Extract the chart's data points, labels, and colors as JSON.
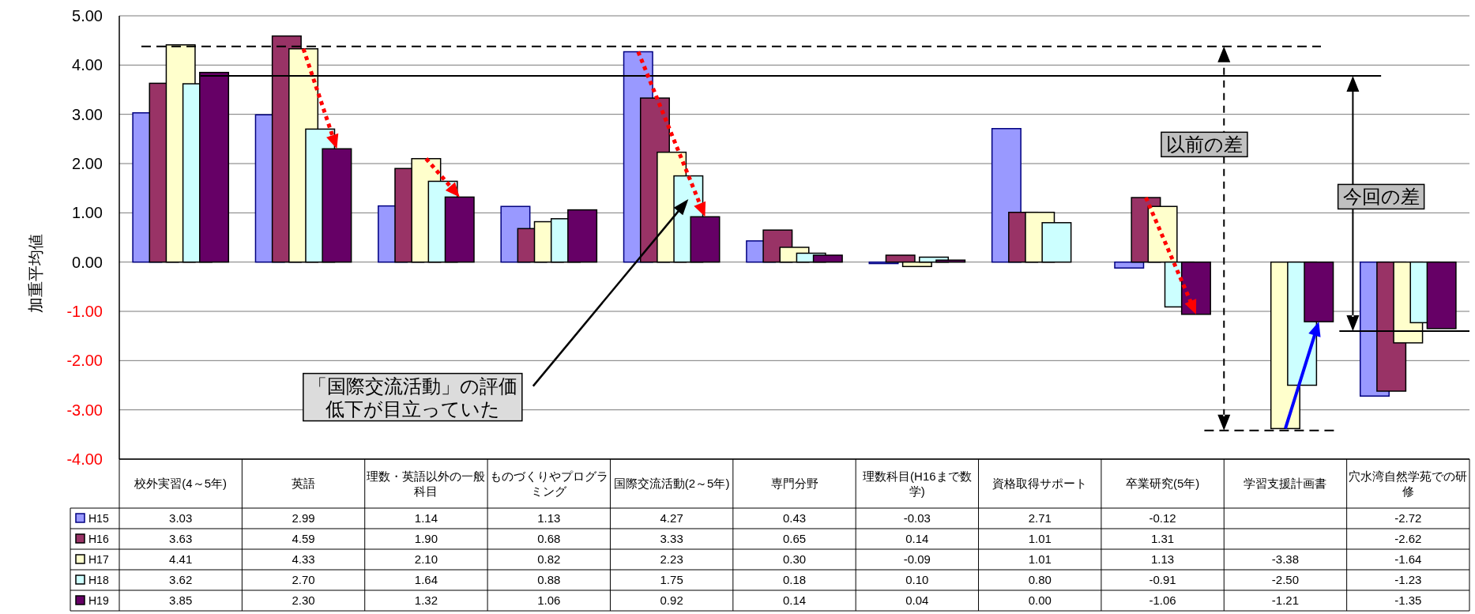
{
  "chart_data": {
    "type": "bar",
    "ylabel": "加重平均値",
    "categories": [
      "校外実習(4～5年)",
      "英語",
      "理数・英語以外の一般科目",
      "ものづくりやプログラミング",
      "国際交流活動(2～5年)",
      "専門分野",
      "理数科目(H16まで数学)",
      "資格取得サポート",
      "卒業研究(5年)",
      "学習支援計画書",
      "穴水湾自然学苑での研修"
    ],
    "series": [
      {
        "name": "H15",
        "color": "#9999ff",
        "values": [
          3.03,
          2.99,
          1.14,
          1.13,
          4.27,
          0.43,
          -0.03,
          2.71,
          -0.12,
          null,
          -2.72
        ],
        "value_labels": [
          "3.03",
          "2.99",
          "1.14",
          "1.13",
          "4.27",
          "0.43",
          "-0.03",
          "2.71",
          "-0.12",
          null,
          "-2.72"
        ]
      },
      {
        "name": "H16",
        "color": "#993366",
        "values": [
          3.63,
          4.59,
          1.9,
          0.68,
          3.33,
          0.65,
          0.14,
          1.01,
          1.31,
          null,
          -2.62
        ],
        "value_labels": [
          "3.63",
          "4.59",
          "1.90",
          "0.68",
          "3.33",
          "0.65",
          "0.14",
          "1.01",
          "1.31",
          null,
          "-2.62"
        ]
      },
      {
        "name": "H17",
        "color": "#ffffcc",
        "values": [
          4.41,
          4.33,
          2.1,
          0.82,
          2.23,
          0.3,
          -0.09,
          1.01,
          1.13,
          -3.38,
          -1.64
        ],
        "value_labels": [
          "4.41",
          "4.33",
          "2.10",
          "0.82",
          "2.23",
          "0.30",
          "-0.09",
          "1.01",
          "1.13",
          "-3.38",
          "-1.64"
        ]
      },
      {
        "name": "H18",
        "color": "#ccffff",
        "values": [
          3.62,
          2.7,
          1.64,
          0.88,
          1.75,
          0.18,
          0.1,
          0.8,
          -0.91,
          -2.5,
          -1.23
        ],
        "value_labels": [
          "3.62",
          "2.70",
          "1.64",
          "0.88",
          "1.75",
          "0.18",
          "0.10",
          "0.80",
          "-0.91",
          "-2.50",
          "-1.23"
        ]
      },
      {
        "name": "H19",
        "color": "#660066",
        "values": [
          3.85,
          2.3,
          1.32,
          1.06,
          0.92,
          0.14,
          0.04,
          0.0,
          -1.06,
          -1.21,
          -1.35
        ],
        "value_labels": [
          "3.85",
          "2.30",
          "1.32",
          "1.06",
          "0.92",
          "0.14",
          "0.04",
          "0.00",
          "-1.06",
          "-1.21",
          "-1.35"
        ]
      }
    ],
    "ylim": [
      -4,
      5
    ],
    "yticks": [
      {
        "value": -4,
        "label": "-4.00"
      },
      {
        "value": -3,
        "label": "-3.00"
      },
      {
        "value": -2,
        "label": "-2.00"
      },
      {
        "value": -1,
        "label": "-1.00"
      },
      {
        "value": 0,
        "label": "0.00"
      },
      {
        "value": 1,
        "label": "1.00"
      },
      {
        "value": 2,
        "label": "2.00"
      },
      {
        "value": 3,
        "label": "3.00"
      },
      {
        "value": 4,
        "label": "4.00"
      },
      {
        "value": 5,
        "label": "5.00"
      }
    ],
    "grid": "y",
    "legend": "bottom",
    "ref_lines": [
      {
        "axis": "y",
        "value": 4.38,
        "line_style": "dashed"
      },
      {
        "axis": "y",
        "value": 3.78,
        "line_style": "solid"
      },
      {
        "axis": "y",
        "value": -1.4,
        "line_style": "solid"
      },
      {
        "axis": "y",
        "value": -3.42,
        "line_style": "dashed"
      }
    ],
    "annotations": [
      "「国際交流活動」の評価低下が目立っていた",
      "以前の差",
      "今回の差"
    ]
  }
}
